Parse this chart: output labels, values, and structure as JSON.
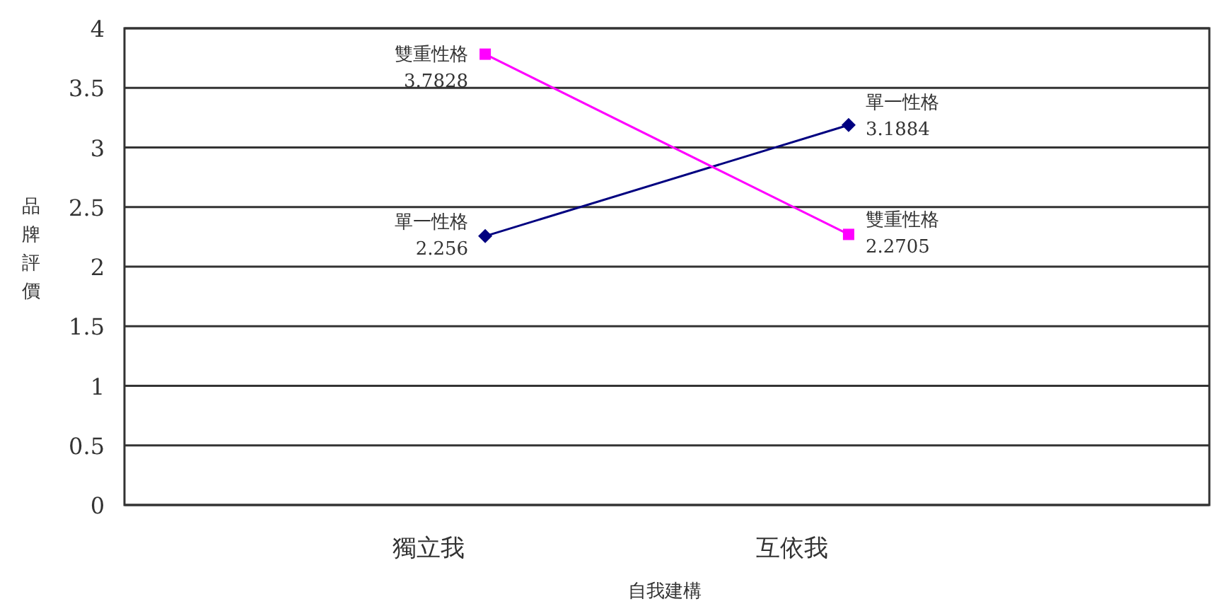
{
  "chart_data": {
    "type": "line",
    "xlabel": "自我建構",
    "ylabel": "品牌評價",
    "categories": [
      "獨立我",
      "互依我"
    ],
    "series": [
      {
        "name": "單一性格",
        "color": "#000080",
        "marker": "diamond",
        "values": [
          2.256,
          3.1884
        ]
      },
      {
        "name": "雙重性格",
        "color": "#ff00ff",
        "marker": "square",
        "values": [
          3.7828,
          2.2705
        ]
      }
    ],
    "ylim": [
      0,
      4
    ],
    "yticks": [
      0,
      0.5,
      1,
      1.5,
      2,
      2.5,
      3,
      3.5,
      4
    ],
    "grid": "y",
    "data_labels": true
  }
}
